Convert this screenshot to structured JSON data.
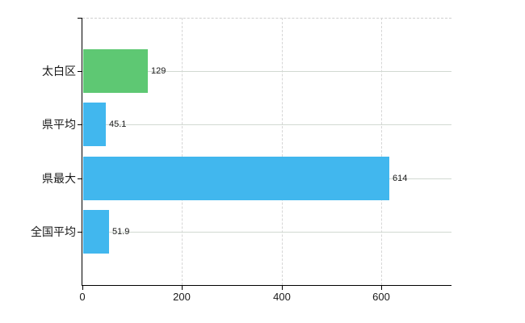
{
  "chart_data": {
    "type": "bar",
    "orientation": "horizontal",
    "title": "",
    "xlabel": "",
    "ylabel": "",
    "categories": [
      "太白区",
      "県平均",
      "県最大",
      "全国平均"
    ],
    "values": [
      129,
      45.1,
      614,
      51.9
    ],
    "value_labels": [
      "129",
      "45.1",
      "614",
      "51.9"
    ],
    "bar_colors": [
      "#5ec873",
      "#41b7ee",
      "#41b7ee",
      "#41b7ee"
    ],
    "xlim": [
      0,
      741
    ],
    "x_ticks": [
      0,
      200,
      400,
      600
    ],
    "x_tick_labels": [
      "0",
      "200",
      "400",
      "600"
    ],
    "grid": "on",
    "gridline_h_style": "solid",
    "gridline_v_style": "dashed",
    "legend": "none",
    "background_color": "#ffffff",
    "axis_color": "#000000",
    "text_color": "#1a1a1a",
    "gridline_color": "#d2d9d2"
  }
}
